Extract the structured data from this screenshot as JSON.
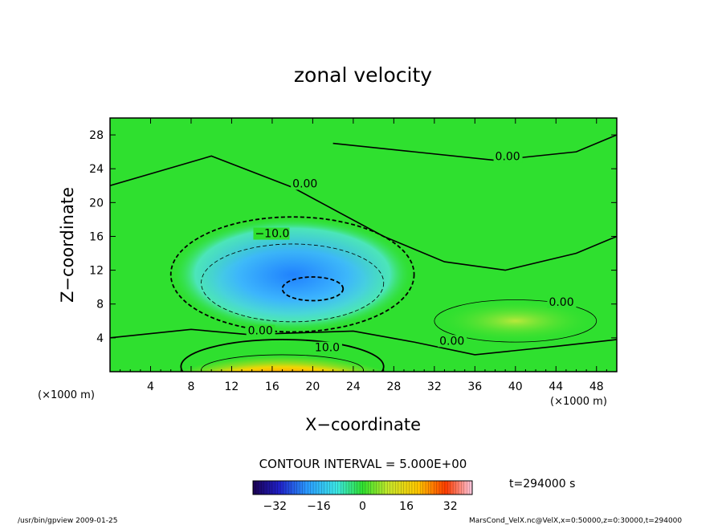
{
  "chart_data": {
    "type": "heatmap",
    "title": "zonal velocity",
    "xlabel": "X−coordinate",
    "ylabel": "Z−coordinate",
    "x_unit": "(×1000 m)",
    "y_unit": "(×1000 m)",
    "xlim": [
      0,
      50
    ],
    "ylim": [
      0,
      30
    ],
    "x_ticks": [
      4,
      8,
      12,
      16,
      20,
      24,
      28,
      32,
      36,
      40,
      44,
      48
    ],
    "y_ticks": [
      4,
      8,
      12,
      16,
      20,
      24,
      28
    ],
    "x_tick_labels": [
      "4",
      "8",
      "12",
      "16",
      "20",
      "24",
      "28",
      "32",
      "36",
      "40",
      "44",
      "48"
    ],
    "y_tick_labels": [
      "4",
      "8",
      "12",
      "16",
      "20",
      "24",
      "28"
    ],
    "contour_labels": [
      {
        "text": "0.00",
        "x": 38.0,
        "y": 25.0
      },
      {
        "text": "0.00",
        "x": 18.0,
        "y": 21.8
      },
      {
        "text": "−10.0",
        "x": 14.3,
        "y": 15.9
      },
      {
        "text": "0.00",
        "x": 13.6,
        "y": 4.4
      },
      {
        "text": "10.0",
        "x": 20.2,
        "y": 2.4
      },
      {
        "text": "0.00",
        "x": 32.5,
        "y": 3.2
      },
      {
        "text": "0.00",
        "x": 43.3,
        "y": 7.8
      }
    ],
    "features": [
      {
        "kind": "min",
        "value": -20,
        "x": 20,
        "y": 9.8,
        "rx": 3,
        "ry": 1.4
      },
      {
        "kind": "trough",
        "value": -15,
        "x": 18,
        "y": 10.5,
        "rx": 9,
        "ry": 4.6
      },
      {
        "kind": "trough",
        "value": -10,
        "x": 18,
        "y": 11.5,
        "rx": 12,
        "ry": 6.8
      },
      {
        "kind": "jet",
        "value": 25,
        "x": 17,
        "y": 0.2,
        "rx": 8,
        "ry": 1.8
      },
      {
        "kind": "jet",
        "value": 10,
        "x": 17,
        "y": 0.6,
        "rx": 10,
        "ry": 3.2
      },
      {
        "kind": "jet",
        "value": 5,
        "x": 40,
        "y": 6.0,
        "rx": 8,
        "ry": 2.5
      }
    ],
    "colorbar": {
      "min": -40,
      "max": 40,
      "ticks": [
        -32,
        -16,
        0,
        16,
        32
      ],
      "tick_labels": [
        "−32",
        "−16",
        "0",
        "16",
        "32"
      ]
    },
    "colors": {
      "background": "#2fe02f",
      "frame": "#000000"
    }
  },
  "contour_interval": "CONTOUR INTERVAL = 5.000E+00",
  "time_label": "t=294000 s",
  "footer_left": "/usr/bin/gpview  2009-01-25",
  "footer_right": "MarsCond_VelX.nc@VelX,x=0:50000,z=0:30000,t=294000"
}
